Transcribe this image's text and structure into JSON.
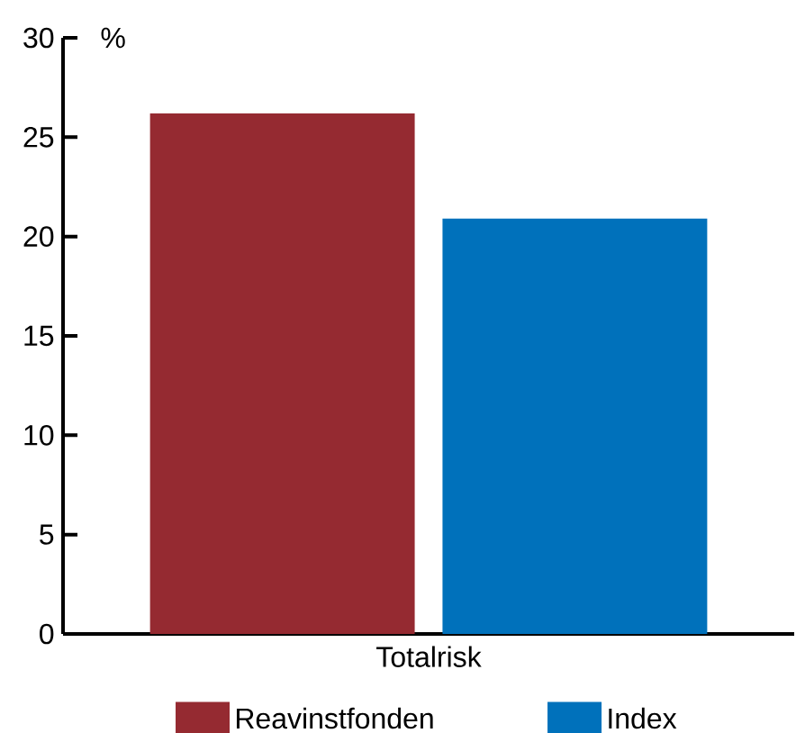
{
  "chart_data": {
    "type": "bar",
    "categories": [
      "Totalrisk"
    ],
    "ylabel": "%",
    "series": [
      {
        "name": "Reavinstfonden",
        "color": "#952a31",
        "values": [
          26.2
        ]
      },
      {
        "name": "Index",
        "color": "#0071bb",
        "values": [
          20.9
        ]
      }
    ],
    "ylim": [
      0,
      30
    ],
    "yticks": [
      0,
      5,
      10,
      15,
      20,
      25,
      30
    ],
    "grid": false,
    "legend": "bottom"
  }
}
